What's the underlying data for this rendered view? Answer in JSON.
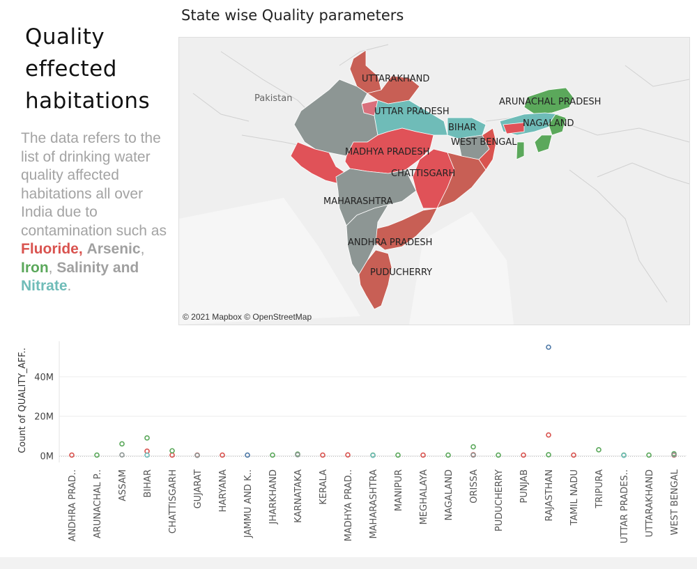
{
  "dashboard": {
    "left_title": [
      "Quality",
      "effected",
      "habitations"
    ],
    "description": {
      "prefix": "The data refers to the list of drinking water quality affected habitations all over India due to contamination such as ",
      "fluoride": "Fluoride",
      "comma1": ",",
      "arsenic": "Arsenic",
      "comma2": ",",
      "iron": "Iron",
      "comma3": ",",
      "salinity": "Salinity and",
      "nitrate": "Nitrate",
      "period": "."
    },
    "colors": {
      "fluoride": "#d9534f",
      "arsenic": "#8d9694",
      "iron": "#5ba85b",
      "salinity": "#a0a0a0",
      "nitrate": "#6fbcb8",
      "description_gray": "#a3a3a3"
    }
  },
  "map": {
    "title": "State wise Quality parameters",
    "attribution": "© 2021 Mapbox © OpenStreetMap",
    "country_label": "Pakistan",
    "state_labels": [
      "UTTARAKHAND",
      "UTTAR PRADESH",
      "ARUNACHAL PRADESH",
      "BIHAR",
      "NAGALAND",
      "WEST BENGAL",
      "MADHYA PRADESH",
      "CHATTISGARH",
      "MAHARASHTRA",
      "ANDHRA PRADESH",
      "PUDUCHERRY"
    ]
  },
  "chart_data": {
    "type": "scatter",
    "title": "",
    "ylabel": "Count of QUALITY_AFF..",
    "xlabel": "",
    "ylim": [
      -2,
      58
    ],
    "yticks": [
      0,
      20,
      40
    ],
    "ytick_labels": [
      "0M",
      "20M",
      "40M"
    ],
    "grid": true,
    "categories": [
      "ANDHRA PRAD..",
      "ARUNACHAL P..",
      "ASSAM",
      "BIHAR",
      "CHATTISGARH",
      "GUJARAT",
      "HARYANA",
      "JAMMU AND K..",
      "JHARKHAND",
      "KARNATAKA",
      "KERALA",
      "MADHYA PRAD..",
      "MAHARASHTRA",
      "MANIPUR",
      "MEGHALAYA",
      "NAGALAND",
      "ORISSA",
      "PUDUCHERRY",
      "PUNJAB",
      "RAJASTHAN",
      "TAMIL NADU",
      "TRIPURA",
      "UTTAR PRADES..",
      "UTTARAKHAND",
      "WEST BENGAL"
    ],
    "series": [
      {
        "color": "#d9534f",
        "values": [
          0.3,
          null,
          null,
          2.3,
          0.3,
          0.3,
          0.3,
          null,
          null,
          null,
          0.3,
          0.4,
          null,
          null,
          0.3,
          null,
          0.5,
          null,
          0.3,
          10.5,
          0.3,
          null,
          null,
          null,
          0.3
        ]
      },
      {
        "color": "#5ba85b",
        "values": [
          null,
          0.3,
          6.0,
          9.0,
          2.5,
          null,
          null,
          null,
          0.3,
          0.8,
          null,
          null,
          0.3,
          0.3,
          null,
          0.3,
          4.5,
          0.3,
          null,
          0.5,
          null,
          3.0,
          0.3,
          0.3,
          1.0
        ]
      },
      {
        "color": "#8d9694",
        "values": [
          null,
          null,
          0.4,
          null,
          null,
          0.2,
          null,
          null,
          null,
          0.5,
          null,
          null,
          null,
          null,
          null,
          null,
          0.3,
          null,
          null,
          null,
          null,
          null,
          null,
          null,
          0.5
        ]
      },
      {
        "color": "#6fbcb8",
        "values": [
          null,
          null,
          null,
          0.3,
          null,
          null,
          null,
          null,
          null,
          null,
          null,
          null,
          0.2,
          null,
          null,
          null,
          null,
          null,
          null,
          null,
          null,
          null,
          0.2,
          null,
          null
        ]
      },
      {
        "color": "#4e79a7",
        "values": [
          null,
          null,
          null,
          null,
          null,
          null,
          null,
          0.3,
          null,
          null,
          null,
          null,
          null,
          null,
          null,
          null,
          null,
          null,
          null,
          55.0,
          null,
          null,
          null,
          null,
          null
        ]
      }
    ]
  }
}
